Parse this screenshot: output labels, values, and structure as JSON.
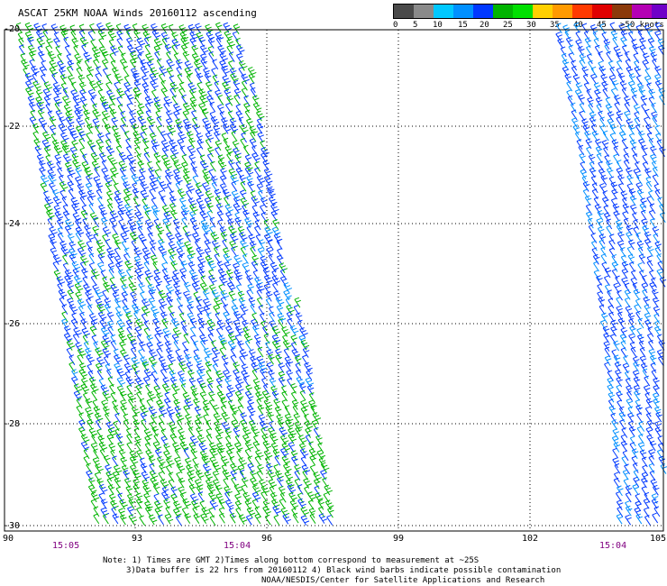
{
  "title": "ASCAT 25KM NOAA Winds 20160112 ascending",
  "legend": {
    "colors": [
      "#4a4a4a",
      "#8a8a8a",
      "#00c8ff",
      "#0090ff",
      "#0038ff",
      "#00b400",
      "#00e000",
      "#ffd000",
      "#ff9a00",
      "#ff3a00",
      "#e00000",
      "#8b3a0a",
      "#b400b4",
      "#7000c8"
    ],
    "labels": [
      "0",
      "5",
      "10",
      "15",
      "20",
      "25",
      "30",
      "35",
      "40",
      "45",
      ">50 knots"
    ]
  },
  "axes": {
    "lat_ticks": [
      "-20",
      "-22",
      "-24",
      "-26",
      "-28",
      "-30"
    ],
    "lon_ticks": [
      "90",
      "93",
      "96",
      "99",
      "102",
      "105"
    ]
  },
  "times": [
    "15:05",
    "15:04",
    "15:04"
  ],
  "notes": [
    "Note: 1) Times are GMT 2)Times along bottom correspond to measurement at ~25S",
    "3)Data buffer is 22 hrs from 20160112 4) Black wind barbs indicate possible contamination",
    "NOAA/NESDIS/Center for Satellite Applications and Research"
  ]
}
